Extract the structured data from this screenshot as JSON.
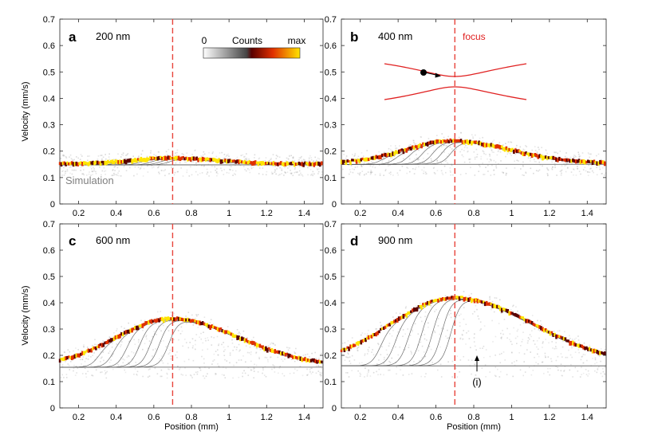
{
  "chart_data": {
    "type": "scatter",
    "description_free": true,
    "xlabel": "Position (mm)",
    "ylabel": "Velocity (mm/s)",
    "xlim": [
      0.1,
      1.5
    ],
    "ylim": [
      0,
      0.7
    ],
    "xticks": [
      0.2,
      0.4,
      0.6,
      0.8,
      1,
      1.2,
      1.4
    ],
    "xtick_labels": [
      "0.2",
      "0.4",
      "0.6",
      "0.8",
      "1",
      "1.2",
      "1.4"
    ],
    "yticks": [
      0,
      0.1,
      0.2,
      0.3,
      0.4,
      0.5,
      0.6,
      0.7
    ],
    "ytick_labels": [
      "0",
      "0.1",
      "0.2",
      "0.3",
      "0.4",
      "0.5",
      "0.6",
      "0.7"
    ],
    "focus_position": 0.7,
    "colors": {
      "focus_line": "#e8453c",
      "focus_text": "#e02020",
      "simulation": "#555555",
      "simulation_label": "#808080",
      "hot_low": "#5a0000",
      "hot_mid": "#e03000",
      "hot_high": "#ffe400"
    },
    "colorbar": {
      "min_label": "0",
      "title": "Counts",
      "max_label": "max"
    },
    "panels": [
      {
        "letter": "a",
        "label": "200 nm",
        "peak": 0.17,
        "baseline": 0.148,
        "annotations": {
          "simulation": "Simulation"
        }
      },
      {
        "letter": "b",
        "label": "400 nm",
        "peak": 0.235,
        "baseline": 0.15,
        "annotations": {
          "focus": "focus"
        }
      },
      {
        "letter": "c",
        "label": "600 nm",
        "peak": 0.335,
        "baseline": 0.155,
        "annotations": {}
      },
      {
        "letter": "d",
        "label": "900 nm",
        "peak": 0.415,
        "baseline": 0.16,
        "annotations": {
          "marker": "(i)"
        }
      }
    ]
  }
}
